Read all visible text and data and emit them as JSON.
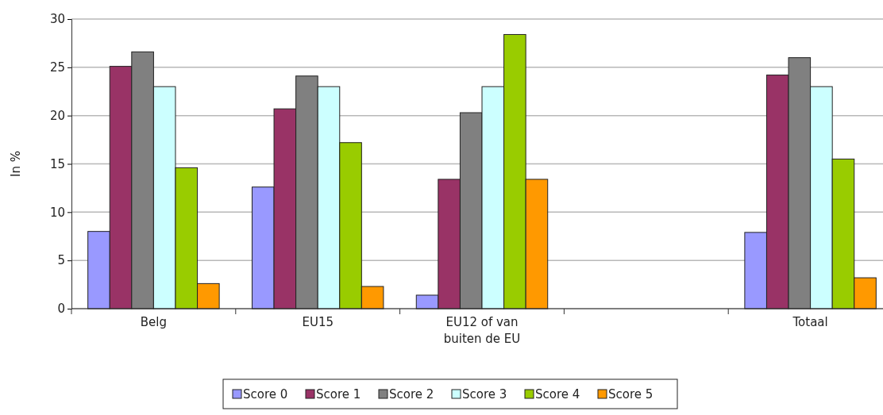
{
  "chart_data": {
    "type": "bar",
    "ylabel": "In %",
    "categories": [
      "Belg",
      "EU15",
      "EU12 of van buiten de EU",
      null,
      "Totaal"
    ],
    "series": [
      {
        "name": "Score 0",
        "color": "#9999ff",
        "values": [
          8.0,
          12.6,
          1.4,
          null,
          7.9
        ]
      },
      {
        "name": "Score 1",
        "color": "#993366",
        "values": [
          25.1,
          20.7,
          13.4,
          null,
          24.2
        ]
      },
      {
        "name": "Score 2",
        "color": "#808080",
        "values": [
          26.6,
          24.1,
          20.3,
          null,
          26.0
        ]
      },
      {
        "name": "Score 3",
        "color": "#ccffff",
        "values": [
          23.0,
          23.0,
          23.0,
          null,
          23.0
        ]
      },
      {
        "name": "Score 4",
        "color": "#99cc00",
        "values": [
          14.6,
          17.2,
          28.4,
          null,
          15.5
        ]
      },
      {
        "name": "Score 5",
        "color": "#ff9900",
        "values": [
          2.6,
          2.3,
          13.4,
          null,
          3.2
        ]
      }
    ],
    "ylim": [
      0,
      30
    ],
    "yticks": [
      0,
      5,
      10,
      15,
      20,
      25,
      30
    ],
    "grid": "y",
    "legend": "bottom"
  }
}
